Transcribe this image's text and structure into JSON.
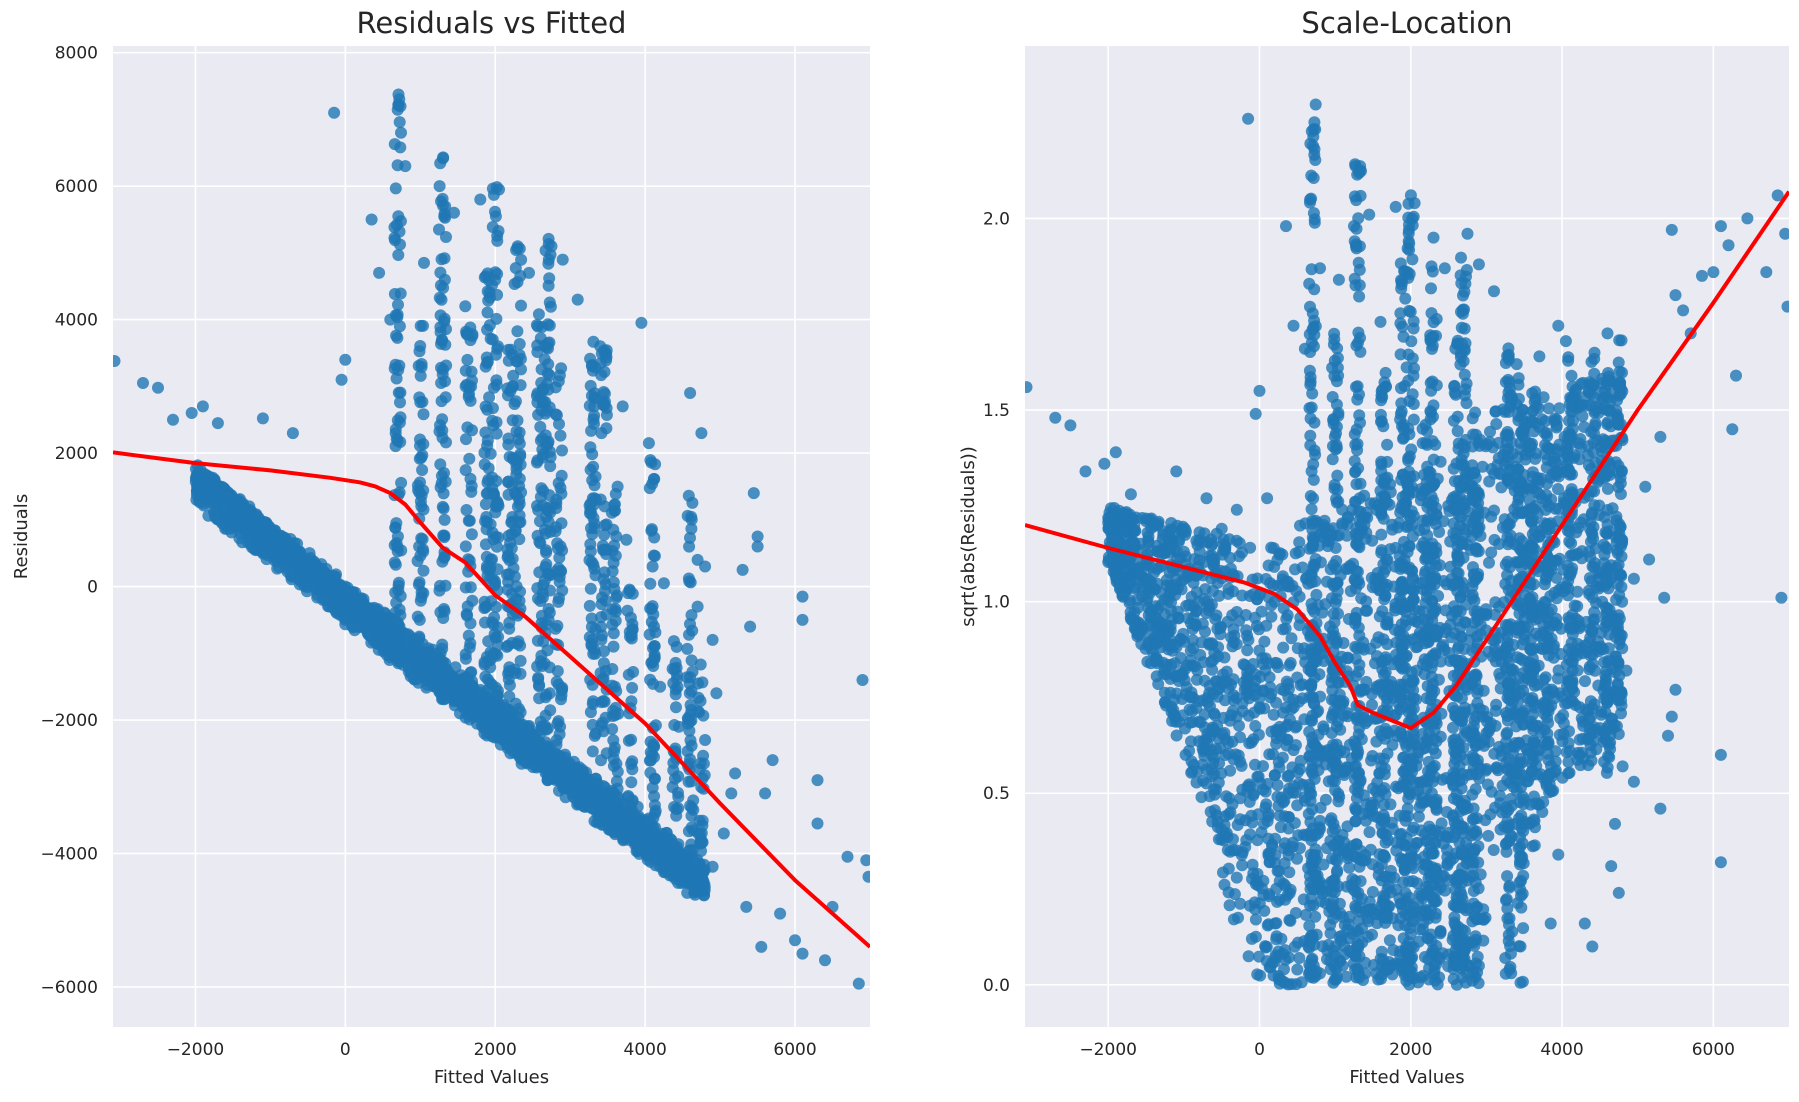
{
  "chart_data": [
    {
      "type": "scatter",
      "title": "Residuals vs Fitted",
      "xlabel": "Fitted Values",
      "ylabel": "Residuals",
      "xlim": [
        -3100,
        7000
      ],
      "ylim": [
        -6600,
        8100
      ],
      "xticks": [
        -2000,
        0,
        2000,
        4000,
        6000
      ],
      "yticks": [
        -6000,
        -4000,
        -2000,
        0,
        2000,
        4000,
        6000,
        8000
      ],
      "xtick_labels": [
        "−2000",
        "0",
        "2000",
        "4000",
        "6000"
      ],
      "ytick_labels": [
        "−6000",
        "−4000",
        "−2000",
        "0",
        "2000",
        "4000",
        "6000",
        "8000"
      ],
      "grid": true,
      "point_color": "#1f77b4",
      "line_color": "#ff0000",
      "points": [
        [
          -3080,
          3380
        ],
        [
          -2700,
          3050
        ],
        [
          -2500,
          2980
        ],
        [
          -2300,
          2500
        ],
        [
          -2050,
          2600
        ],
        [
          -1900,
          2700
        ],
        [
          -1700,
          2450
        ],
        [
          -1100,
          2520
        ],
        [
          -700,
          2300
        ],
        [
          -150,
          7100
        ],
        [
          0,
          3400
        ],
        [
          -50,
          3100
        ],
        [
          350,
          5500
        ],
        [
          450,
          4700
        ],
        [
          600,
          4000
        ],
        [
          800,
          6300
        ],
        [
          1050,
          4850
        ],
        [
          1250,
          5350
        ],
        [
          1450,
          5600
        ],
        [
          1600,
          4200
        ],
        [
          1800,
          5800
        ],
        [
          2050,
          5950
        ],
        [
          2300,
          5100
        ],
        [
          2450,
          4700
        ],
        [
          2750,
          5100
        ],
        [
          2900,
          4900
        ],
        [
          3100,
          4300
        ],
        [
          3400,
          3600
        ],
        [
          3700,
          2700
        ],
        [
          3950,
          3950
        ],
        [
          4050,
          2150
        ],
        [
          4600,
          2900
        ],
        [
          4750,
          2300
        ],
        [
          4700,
          400
        ],
        [
          4800,
          300
        ],
        [
          5300,
          250
        ],
        [
          5400,
          -600
        ],
        [
          5450,
          1400
        ],
        [
          5500,
          750
        ],
        [
          5500,
          600
        ],
        [
          6100,
          -150
        ],
        [
          6100,
          -500
        ],
        [
          6300,
          -2900
        ],
        [
          6300,
          -3550
        ],
        [
          5700,
          -2600
        ],
        [
          5800,
          -4900
        ],
        [
          6000,
          -5300
        ],
        [
          6100,
          -5500
        ],
        [
          6400,
          -5600
        ],
        [
          6500,
          -4800
        ],
        [
          6700,
          -4050
        ],
        [
          6850,
          -5950
        ],
        [
          6900,
          -1400
        ],
        [
          6950,
          -4100
        ],
        [
          6980,
          -4350
        ],
        [
          5150,
          -3100
        ],
        [
          5050,
          -3700
        ],
        [
          4900,
          -4200
        ],
        [
          5550,
          -5400
        ],
        [
          5350,
          -4800
        ],
        [
          4600,
          -3950
        ],
        [
          4350,
          -3800
        ],
        [
          4200,
          -4200
        ],
        [
          3900,
          -3300
        ],
        [
          3600,
          -3500
        ],
        [
          3300,
          -3200
        ],
        [
          3000,
          -3050
        ],
        [
          2700,
          -2900
        ],
        [
          2400,
          -2300
        ],
        [
          2100,
          -2100
        ],
        [
          1800,
          -1900
        ],
        [
          1500,
          -1700
        ],
        [
          1200,
          -1500
        ],
        [
          900,
          -1250
        ],
        [
          600,
          -950
        ],
        [
          300,
          -700
        ],
        [
          0,
          -500
        ],
        [
          -300,
          -200
        ],
        [
          -600,
          100
        ],
        [
          -900,
          450
        ],
        [
          -1200,
          800
        ],
        [
          -1500,
          1100
        ],
        [
          -1800,
          1400
        ],
        [
          4450,
          -2100
        ],
        [
          4200,
          -1500
        ],
        [
          4800,
          -2300
        ],
        [
          5200,
          -2800
        ],
        [
          5600,
          -3100
        ],
        [
          4950,
          -1600
        ],
        [
          4100,
          300
        ],
        [
          4250,
          50
        ],
        [
          4700,
          -300
        ],
        [
          4900,
          -800
        ],
        [
          3750,
          700
        ]
      ],
      "column_clusters": [
        {
          "x": 700,
          "y_min": -950,
          "y_max": 7400
        },
        {
          "x": 1000,
          "y_min": -1200,
          "y_max": 4000
        },
        {
          "x": 1300,
          "y_min": -1400,
          "y_max": 6500
        },
        {
          "x": 1650,
          "y_min": -1700,
          "y_max": 3900
        },
        {
          "x": 1900,
          "y_min": -1900,
          "y_max": 4800
        },
        {
          "x": 2000,
          "y_min": -2000,
          "y_max": 6050
        },
        {
          "x": 2200,
          "y_min": -2100,
          "y_max": 3600
        },
        {
          "x": 2300,
          "y_min": -2200,
          "y_max": 5300
        },
        {
          "x": 2600,
          "y_min": -2600,
          "y_max": 4100
        },
        {
          "x": 2700,
          "y_min": -2700,
          "y_max": 5300
        },
        {
          "x": 2850,
          "y_min": -2800,
          "y_max": 3300
        },
        {
          "x": 3300,
          "y_min": -3300,
          "y_max": 3900
        },
        {
          "x": 3450,
          "y_min": -3400,
          "y_max": 3650
        },
        {
          "x": 3600,
          "y_min": -3500,
          "y_max": 1500
        },
        {
          "x": 3800,
          "y_min": -3600,
          "y_max": 200
        },
        {
          "x": 4100,
          "y_min": -3700,
          "y_max": 1900
        },
        {
          "x": 4400,
          "y_min": -3900,
          "y_max": -800
        },
        {
          "x": 4600,
          "y_min": -4200,
          "y_max": 1500
        },
        {
          "x": 4750,
          "y_min": -4300,
          "y_max": -1100
        }
      ],
      "lowess": [
        [
          -3100,
          2010
        ],
        [
          -2000,
          1850
        ],
        [
          -1000,
          1740
        ],
        [
          -200,
          1630
        ],
        [
          200,
          1560
        ],
        [
          400,
          1500
        ],
        [
          600,
          1400
        ],
        [
          800,
          1230
        ],
        [
          1000,
          960
        ],
        [
          1300,
          580
        ],
        [
          1600,
          360
        ],
        [
          2000,
          -130
        ],
        [
          2400,
          -450
        ],
        [
          3000,
          -1050
        ],
        [
          4000,
          -2050
        ],
        [
          5000,
          -3250
        ],
        [
          6000,
          -4400
        ],
        [
          7000,
          -5400
        ]
      ]
    },
    {
      "type": "scatter",
      "title": "Scale-Location",
      "xlabel": "Fitted Values",
      "ylabel": "sqrt(abs(Residuals))",
      "xlim": [
        -3100,
        7000
      ],
      "ylim": [
        -0.11,
        2.45
      ],
      "xticks": [
        -2000,
        0,
        2000,
        4000,
        6000
      ],
      "yticks": [
        0.0,
        0.5,
        1.0,
        1.5,
        2.0
      ],
      "xtick_labels": [
        "−2000",
        "0",
        "2000",
        "4000",
        "6000"
      ],
      "ytick_labels": [
        "0.0",
        "0.5",
        "1.0",
        "1.5",
        "2.0"
      ],
      "grid": true,
      "point_color": "#1f77b4",
      "line_color": "#ff0000",
      "points": [
        [
          -3080,
          1.56
        ],
        [
          -2700,
          1.48
        ],
        [
          -2500,
          1.46
        ],
        [
          -2300,
          1.34
        ],
        [
          -2050,
          1.36
        ],
        [
          -1900,
          1.39
        ],
        [
          -1700,
          1.28
        ],
        [
          -1100,
          1.34
        ],
        [
          -700,
          1.27
        ],
        [
          -150,
          2.26
        ],
        [
          0,
          1.55
        ],
        [
          -50,
          1.49
        ],
        [
          350,
          1.98
        ],
        [
          450,
          1.72
        ],
        [
          600,
          1.66
        ],
        [
          800,
          1.87
        ],
        [
          1050,
          1.84
        ],
        [
          1250,
          1.98
        ],
        [
          1450,
          2.01
        ],
        [
          1600,
          1.73
        ],
        [
          1800,
          2.03
        ],
        [
          2050,
          2.04
        ],
        [
          2300,
          1.95
        ],
        [
          2450,
          1.87
        ],
        [
          2750,
          1.96
        ],
        [
          2900,
          1.88
        ],
        [
          3100,
          1.81
        ],
        [
          3400,
          1.62
        ],
        [
          3700,
          1.64
        ],
        [
          3950,
          1.72
        ],
        [
          4050,
          1.68
        ],
        [
          4600,
          1.7
        ],
        [
          4750,
          1.56
        ],
        [
          5300,
          1.43
        ],
        [
          5450,
          1.97
        ],
        [
          5500,
          1.8
        ],
        [
          5600,
          1.76
        ],
        [
          5850,
          1.85
        ],
        [
          6000,
          1.86
        ],
        [
          6100,
          1.98
        ],
        [
          6200,
          1.93
        ],
        [
          6450,
          2.0
        ],
        [
          6700,
          1.86
        ],
        [
          6850,
          2.06
        ],
        [
          6950,
          1.96
        ],
        [
          6980,
          1.77
        ],
        [
          6900,
          1.01
        ],
        [
          6300,
          1.59
        ],
        [
          6250,
          1.45
        ],
        [
          6100,
          0.6
        ],
        [
          6100,
          0.32
        ],
        [
          5700,
          1.7
        ],
        [
          5500,
          0.77
        ],
        [
          5450,
          0.7
        ],
        [
          5400,
          0.65
        ],
        [
          5300,
          0.46
        ],
        [
          5100,
          1.3
        ],
        [
          4750,
          0.24
        ],
        [
          4700,
          0.42
        ],
        [
          4400,
          0.1
        ],
        [
          4800,
          0.57
        ],
        [
          4850,
          0.82
        ],
        [
          5150,
          1.11
        ],
        [
          5350,
          1.01
        ],
        [
          4500,
          0.67
        ],
        [
          4300,
          0.16
        ],
        [
          3950,
          0.34
        ],
        [
          3850,
          0.16
        ],
        [
          3450,
          0.1
        ],
        [
          3250,
          0.07
        ],
        [
          2900,
          0.05
        ],
        [
          2600,
          0.05
        ],
        [
          2300,
          0.08
        ],
        [
          2000,
          0.02
        ],
        [
          1700,
          0.04
        ],
        [
          1400,
          0.03
        ],
        [
          1100,
          0.05
        ],
        [
          800,
          0.03
        ],
        [
          500,
          0.04
        ],
        [
          200,
          0.06
        ],
        [
          -100,
          0.12
        ],
        [
          -300,
          0.28
        ],
        [
          -600,
          0.55
        ],
        [
          -900,
          0.75
        ],
        [
          -1200,
          0.92
        ],
        [
          -1500,
          1.05
        ],
        [
          -1800,
          1.15
        ],
        [
          -1000,
          1.13
        ],
        [
          -500,
          1.19
        ],
        [
          -300,
          1.24
        ],
        [
          100,
          1.27
        ],
        [
          3750,
          0.98
        ],
        [
          4200,
          0.86
        ],
        [
          4950,
          1.06
        ],
        [
          4650,
          0.31
        ],
        [
          4950,
          0.53
        ]
      ],
      "column_clusters": [
        {
          "x": 700,
          "y_min": 0.0,
          "y_max": 2.3
        },
        {
          "x": 1000,
          "y_min": 0.0,
          "y_max": 1.7
        },
        {
          "x": 1300,
          "y_min": 0.0,
          "y_max": 2.15
        },
        {
          "x": 1650,
          "y_min": 0.0,
          "y_max": 1.6
        },
        {
          "x": 1900,
          "y_min": 0.0,
          "y_max": 1.9
        },
        {
          "x": 2000,
          "y_min": 0.0,
          "y_max": 2.08
        },
        {
          "x": 2200,
          "y_min": 0.0,
          "y_max": 1.55
        },
        {
          "x": 2300,
          "y_min": 0.0,
          "y_max": 1.9
        },
        {
          "x": 2600,
          "y_min": 0.0,
          "y_max": 1.7
        },
        {
          "x": 2700,
          "y_min": 0.0,
          "y_max": 1.95
        },
        {
          "x": 2850,
          "y_min": 0.0,
          "y_max": 1.5
        },
        {
          "x": 3300,
          "y_min": 0.0,
          "y_max": 1.68
        },
        {
          "x": 3450,
          "y_min": 0.0,
          "y_max": 1.62
        },
        {
          "x": 3600,
          "y_min": 0.35,
          "y_max": 1.55
        },
        {
          "x": 3800,
          "y_min": 0.5,
          "y_max": 1.45
        },
        {
          "x": 4100,
          "y_min": 0.55,
          "y_max": 1.65
        },
        {
          "x": 4400,
          "y_min": 0.6,
          "y_max": 1.65
        },
        {
          "x": 4600,
          "y_min": 0.55,
          "y_max": 1.6
        },
        {
          "x": 4750,
          "y_min": 0.7,
          "y_max": 1.7
        }
      ],
      "lowess": [
        [
          -3100,
          1.2
        ],
        [
          -2000,
          1.14
        ],
        [
          -1000,
          1.09
        ],
        [
          -200,
          1.05
        ],
        [
          200,
          1.02
        ],
        [
          500,
          0.98
        ],
        [
          800,
          0.91
        ],
        [
          1000,
          0.84
        ],
        [
          1200,
          0.78
        ],
        [
          1300,
          0.73
        ],
        [
          1500,
          0.71
        ],
        [
          2000,
          0.67
        ],
        [
          2300,
          0.71
        ],
        [
          2600,
          0.78
        ],
        [
          3000,
          0.9
        ],
        [
          4000,
          1.2
        ],
        [
          5000,
          1.5
        ],
        [
          6000,
          1.78
        ],
        [
          7000,
          2.07
        ]
      ]
    }
  ]
}
